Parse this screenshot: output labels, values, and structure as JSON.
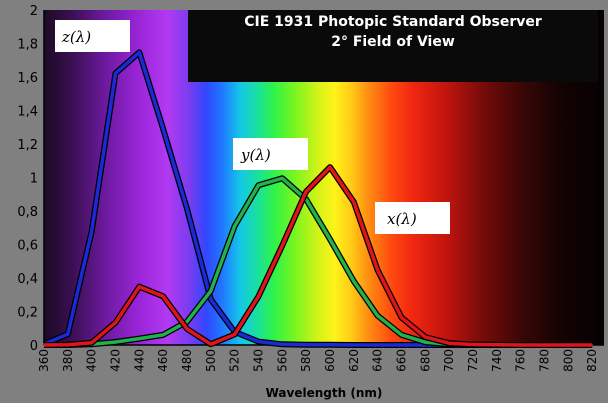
{
  "chart_data": {
    "type": "line",
    "title_lines": [
      "CIE 1931 Photopic Standard Observer",
      "2° Field of View"
    ],
    "xlabel": "Wavelength (nm)",
    "ylabel": "",
    "xlim": [
      360,
      830
    ],
    "ylim": [
      0,
      2
    ],
    "x_ticks": [
      "360",
      "380",
      "400",
      "420",
      "440",
      "460",
      "480",
      "500",
      "520",
      "540",
      "560",
      "580",
      "600",
      "620",
      "640",
      "660",
      "680",
      "700",
      "720",
      "740",
      "760",
      "780",
      "800",
      "820"
    ],
    "y_ticks": [
      "0",
      "0,2",
      "0,4",
      "0,6",
      "0,8",
      "1",
      "1,2",
      "1,4",
      "1,6",
      "1,8",
      "2"
    ],
    "grid": false,
    "background": "visible spectrum gradient",
    "x": [
      360,
      380,
      400,
      420,
      440,
      460,
      480,
      500,
      520,
      540,
      560,
      580,
      600,
      620,
      640,
      660,
      680,
      700,
      720,
      740,
      760,
      780,
      800,
      820
    ],
    "series": [
      {
        "name": "z(λ)",
        "color": "#1a2bd6",
        "values": [
          0.006,
          0.065,
          0.679,
          1.622,
          1.747,
          1.291,
          0.813,
          0.272,
          0.078,
          0.02,
          0.004,
          0.002,
          0.001,
          0.0,
          0.0,
          0.0,
          0.0,
          0.0,
          0.0,
          0.0,
          0.0,
          0.0,
          0.0,
          0.0
        ]
      },
      {
        "name": "y(λ)",
        "color": "#22b14c",
        "values": [
          0.0,
          0.0,
          0.004,
          0.018,
          0.038,
          0.06,
          0.139,
          0.323,
          0.71,
          0.954,
          0.995,
          0.87,
          0.631,
          0.381,
          0.175,
          0.061,
          0.017,
          0.004,
          0.001,
          0.0,
          0.0,
          0.0,
          0.0,
          0.0
        ]
      },
      {
        "name": "x(λ)",
        "color": "#e0151c",
        "values": [
          0.0,
          0.001,
          0.014,
          0.134,
          0.348,
          0.291,
          0.096,
          0.005,
          0.063,
          0.29,
          0.594,
          0.916,
          1.062,
          0.854,
          0.448,
          0.165,
          0.047,
          0.011,
          0.003,
          0.001,
          0.0,
          0.0,
          0.0,
          0.0
        ]
      }
    ],
    "annotations": [
      "z(λ)",
      "y(λ)",
      "x(λ)"
    ]
  }
}
